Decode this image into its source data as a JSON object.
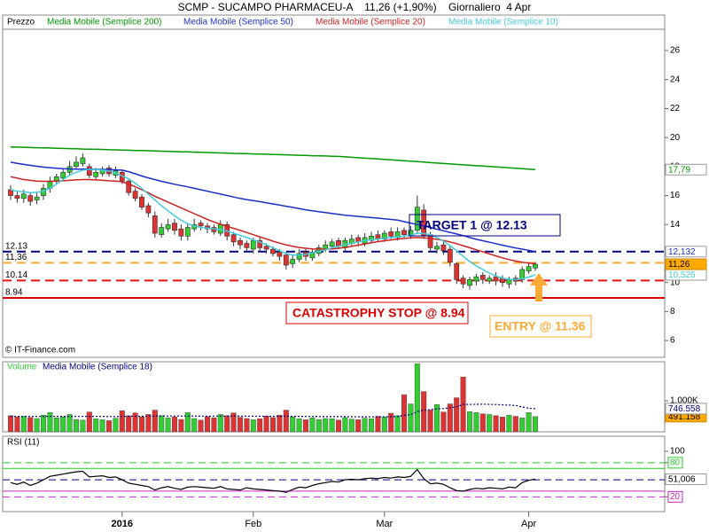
{
  "chart_data": [
    {
      "type": "candlestick",
      "title": "SCMP - SUCAMPO PHARMACEU-A    11,26 (+1,90%)    Giornaliero  4 Apr",
      "categories": [
        null,
        null,
        null,
        null,
        null,
        null,
        null,
        null,
        null,
        null,
        null,
        null,
        null,
        null,
        null,
        null,
        null,
        "2016",
        null,
        null,
        null,
        null,
        null,
        null,
        null,
        null,
        null,
        null,
        null,
        null,
        null,
        null,
        null,
        null,
        null,
        null,
        null,
        "Feb",
        null,
        null,
        null,
        null,
        null,
        null,
        null,
        null,
        null,
        null,
        null,
        null,
        null,
        null,
        null,
        null,
        null,
        null,
        null,
        "Mar",
        null,
        null,
        null,
        null,
        null,
        null,
        null,
        null,
        null,
        null,
        null,
        null,
        null,
        null,
        null,
        null,
        null,
        null,
        null,
        null,
        null,
        "Apr",
        null
      ],
      "ohlc_name": "Prezzo",
      "up_color": "#33cc33",
      "down_color": "#dd3333",
      "open": [
        16.4,
        16.0,
        15.8,
        16.0,
        15.7,
        16.0,
        16.5,
        17.0,
        17.2,
        17.6,
        18.0,
        18.2,
        18.0,
        17.3,
        17.5,
        17.9,
        17.4,
        17.6,
        17.0,
        16.3,
        15.9,
        15.3,
        14.6,
        13.3,
        13.7,
        14.1,
        13.7,
        13.2,
        13.7,
        14.1,
        13.9,
        13.8,
        13.4,
        14.0,
        13.3,
        12.9,
        12.7,
        12.3,
        12.9,
        12.5,
        12.3,
        12.1,
        11.9,
        11.3,
        11.6,
        12.1,
        11.7,
        12.0,
        12.3,
        12.5,
        12.9,
        12.4,
        12.7,
        13.1,
        12.7,
        12.9,
        13.3,
        13.0,
        13.5,
        13.1,
        13.6,
        13.2,
        13.6,
        15.0,
        13.3,
        12.3,
        12.6,
        12.3,
        11.3,
        10.3,
        9.8,
        10.1,
        10.5,
        10.1,
        10.4,
        10.3,
        9.9,
        10.3,
        10.2,
        10.8,
        11.0
      ],
      "high": [
        16.7,
        16.3,
        16.4,
        16.2,
        16.2,
        16.8,
        17.3,
        17.5,
        17.9,
        18.4,
        18.7,
        18.9,
        18.2,
        17.9,
        18.0,
        18.1,
        18.0,
        17.8,
        17.2,
        16.5,
        16.1,
        15.5,
        14.9,
        14.1,
        14.4,
        14.4,
        14.0,
        14.1,
        14.4,
        14.3,
        14.1,
        14.0,
        14.3,
        14.2,
        13.5,
        13.1,
        12.9,
        13.1,
        13.1,
        12.7,
        12.5,
        12.3,
        12.1,
        11.9,
        12.3,
        12.3,
        12.3,
        12.6,
        12.9,
        13.0,
        13.1,
        13.1,
        13.3,
        13.3,
        13.4,
        13.5,
        13.6,
        13.6,
        13.8,
        13.8,
        13.8,
        13.9,
        16.0,
        15.4,
        13.5,
        12.8,
        12.8,
        12.5,
        11.4,
        10.5,
        10.4,
        10.6,
        10.7,
        10.5,
        10.7,
        10.5,
        10.4,
        10.5,
        11.1,
        11.3,
        11.4
      ],
      "low": [
        15.7,
        15.5,
        15.5,
        15.3,
        15.4,
        15.7,
        16.2,
        16.8,
        17.0,
        17.4,
        17.8,
        18.0,
        17.2,
        17.1,
        17.3,
        17.3,
        17.2,
        16.8,
        16.0,
        15.6,
        15.0,
        14.5,
        13.1,
        13.1,
        13.5,
        13.3,
        12.9,
        12.9,
        13.5,
        13.6,
        13.4,
        13.3,
        13.2,
        12.9,
        12.5,
        12.3,
        12.1,
        12.0,
        12.1,
        12.0,
        11.8,
        11.5,
        10.9,
        11.0,
        11.4,
        11.5,
        11.5,
        11.8,
        12.1,
        12.3,
        12.3,
        12.2,
        12.5,
        12.5,
        12.5,
        12.7,
        12.8,
        12.8,
        13.0,
        12.9,
        13.1,
        13.0,
        13.4,
        13.0,
        12.1,
        12.0,
        11.9,
        11.1,
        9.9,
        9.6,
        9.5,
        9.8,
        9.9,
        9.9,
        9.8,
        9.7,
        9.6,
        9.8,
        10.0,
        10.6,
        10.8
      ],
      "close": [
        16.0,
        15.8,
        16.1,
        15.6,
        15.9,
        16.5,
        17.0,
        17.3,
        17.6,
        18.0,
        18.3,
        18.6,
        17.4,
        17.6,
        17.8,
        17.5,
        17.7,
        17.0,
        16.2,
        15.8,
        15.2,
        14.8,
        13.4,
        13.8,
        14.0,
        13.6,
        13.2,
        13.8,
        14.0,
        13.9,
        13.7,
        13.5,
        14.0,
        13.2,
        12.8,
        12.6,
        12.4,
        12.9,
        12.4,
        12.3,
        12.0,
        11.8,
        11.2,
        11.6,
        12.0,
        11.8,
        12.1,
        12.4,
        12.6,
        12.8,
        12.5,
        12.9,
        13.0,
        12.8,
        13.1,
        13.2,
        13.0,
        13.4,
        13.2,
        13.5,
        13.3,
        13.6,
        15.2,
        13.2,
        12.4,
        12.5,
        12.2,
        11.4,
        10.2,
        9.9,
        10.2,
        10.4,
        10.2,
        10.3,
        10.1,
        10.0,
        10.2,
        10.1,
        10.9,
        11.1,
        11.26
      ],
      "last_label": "11,26",
      "series": [
        {
          "name": "Media Mobile (Semplice 200)",
          "type": "line",
          "color": "#009900",
          "last_label": "17,79",
          "values": [
            19.35,
            19.34,
            19.33,
            19.31,
            19.3,
            19.29,
            19.28,
            19.26,
            19.25,
            19.24,
            19.23,
            19.21,
            19.2,
            19.19,
            19.18,
            19.16,
            19.15,
            19.14,
            19.13,
            19.11,
            19.1,
            19.09,
            19.07,
            19.06,
            19.05,
            19.03,
            19.02,
            19.01,
            18.99,
            18.98,
            18.97,
            18.95,
            18.94,
            18.93,
            18.91,
            18.9,
            18.89,
            18.87,
            18.86,
            18.85,
            18.83,
            18.82,
            18.81,
            18.79,
            18.78,
            18.77,
            18.75,
            18.74,
            18.73,
            18.71,
            18.7,
            18.67,
            18.64,
            18.61,
            18.58,
            18.55,
            18.52,
            18.49,
            18.46,
            18.43,
            18.4,
            18.37,
            18.34,
            18.31,
            18.27,
            18.24,
            18.21,
            18.18,
            18.15,
            18.12,
            18.09,
            18.06,
            18.03,
            18.0,
            17.97,
            17.94,
            17.91,
            17.88,
            17.85,
            17.82,
            17.79
          ]
        },
        {
          "name": "Media Mobile (Semplice 50)",
          "type": "line",
          "color": "#1a2fc8",
          "last_label": "12,132",
          "values": [
            18.3,
            18.22,
            18.15,
            18.08,
            18.02,
            17.96,
            17.92,
            17.88,
            17.85,
            17.83,
            17.82,
            17.82,
            17.82,
            17.81,
            17.8,
            17.79,
            17.77,
            17.75,
            17.65,
            17.5,
            17.35,
            17.22,
            17.1,
            16.98,
            16.88,
            16.78,
            16.69,
            16.6,
            16.5,
            16.4,
            16.3,
            16.2,
            16.1,
            16.0,
            15.9,
            15.8,
            15.72,
            15.65,
            15.58,
            15.5,
            15.42,
            15.34,
            15.26,
            15.18,
            15.1,
            15.02,
            14.95,
            14.88,
            14.82,
            14.76,
            14.7,
            14.64,
            14.6,
            14.56,
            14.52,
            14.48,
            14.44,
            14.4,
            14.35,
            14.3,
            14.2,
            14.1,
            14.0,
            13.9,
            13.8,
            13.68,
            13.57,
            13.46,
            13.35,
            13.24,
            13.1,
            12.98,
            12.88,
            12.78,
            12.68,
            12.58,
            12.48,
            12.38,
            12.3,
            12.22,
            12.13
          ]
        },
        {
          "name": "Media Mobile (Semplice 20)",
          "type": "line",
          "color": "#cc2222",
          "values": [
            17.3,
            17.2,
            17.1,
            17.05,
            17.0,
            16.98,
            16.98,
            17.0,
            17.02,
            17.05,
            17.08,
            17.1,
            17.1,
            17.08,
            17.05,
            17.02,
            17.0,
            16.95,
            16.8,
            16.6,
            16.4,
            16.2,
            15.95,
            15.75,
            15.55,
            15.35,
            15.15,
            14.95,
            14.75,
            14.55,
            14.35,
            14.18,
            14.02,
            13.88,
            13.74,
            13.6,
            13.45,
            13.3,
            13.15,
            13.0,
            12.85,
            12.72,
            12.6,
            12.5,
            12.42,
            12.36,
            12.32,
            12.3,
            12.3,
            12.32,
            12.36,
            12.42,
            12.5,
            12.58,
            12.66,
            12.74,
            12.82,
            12.88,
            12.94,
            13.0,
            13.04,
            13.08,
            13.1,
            13.08,
            13.04,
            12.98,
            12.9,
            12.8,
            12.68,
            12.54,
            12.4,
            12.26,
            12.12,
            11.98,
            11.84,
            11.7,
            11.58,
            11.48,
            11.4,
            11.34,
            11.3
          ]
        },
        {
          "name": "Media Mobile (Semplice 10)",
          "type": "line",
          "color": "#44ccdd",
          "last_label": "10,526",
          "values": [
            16.4,
            16.3,
            16.25,
            16.2,
            16.22,
            16.3,
            16.5,
            16.8,
            17.1,
            17.4,
            17.6,
            17.75,
            17.8,
            17.8,
            17.75,
            17.7,
            17.55,
            17.35,
            17.15,
            16.85,
            16.5,
            16.1,
            15.7,
            15.3,
            14.95,
            14.6,
            14.3,
            14.05,
            13.9,
            13.8,
            13.75,
            13.7,
            13.65,
            13.55,
            13.4,
            13.25,
            13.1,
            12.95,
            12.8,
            12.6,
            12.4,
            12.2,
            12.0,
            11.9,
            11.9,
            11.95,
            12.05,
            12.15,
            12.25,
            12.4,
            12.5,
            12.6,
            12.7,
            12.8,
            12.9,
            12.95,
            13.0,
            13.05,
            13.1,
            13.15,
            13.2,
            13.25,
            13.4,
            13.38,
            13.3,
            13.1,
            12.85,
            12.55,
            12.2,
            11.8,
            11.45,
            11.15,
            10.9,
            10.65,
            10.45,
            10.3,
            10.22,
            10.2,
            10.25,
            10.38,
            10.526
          ]
        }
      ],
      "ylim": [
        4.84,
        27.47
      ],
      "yticks": [
        6,
        8,
        10,
        12,
        14,
        16,
        18,
        20,
        22,
        24,
        26
      ],
      "levels": [
        {
          "value": 12.13,
          "label": "12.13",
          "color": "#000080",
          "dash": true
        },
        {
          "value": 11.36,
          "label": "11,36",
          "color": "#ffaa33",
          "dash": true
        },
        {
          "value": 10.14,
          "label": "10.14",
          "color": "#ee1111",
          "dash": true
        },
        {
          "value": 8.94,
          "label": "8.94",
          "color": "#dd0000",
          "dash": false
        }
      ],
      "annotations": [
        "TARGET 1 @ 12.13",
        "CATASTROPHY STOP @ 8.94",
        "ENTRY @ 11.36"
      ],
      "credit": "© IT-Finance.com"
    },
    {
      "type": "bar",
      "series": [
        {
          "name": "Volume",
          "type": "bar",
          "color": "#33cc33",
          "last_label": "491.158",
          "values": [
            520,
            480,
            500,
            460,
            430,
            540,
            620,
            450,
            480,
            560,
            400,
            380,
            640,
            420,
            390,
            360,
            440,
            680,
            520,
            610,
            480,
            560,
            700,
            520,
            450,
            480,
            400,
            620,
            430,
            380,
            490,
            450,
            560,
            520,
            610,
            470,
            430,
            390,
            420,
            510,
            460,
            540,
            700,
            480,
            420,
            390,
            450,
            400,
            430,
            420,
            380,
            460,
            410,
            390,
            440,
            420,
            500,
            480,
            600,
            520,
            1200,
            900,
            2200,
            1300,
            700,
            880,
            640,
            900,
            1100,
            1770,
            650,
            620,
            580,
            560,
            520,
            480,
            540,
            500,
            450,
            620,
            491.158
          ]
        },
        {
          "name": "Media Mobile (Semplice 18)",
          "type": "line",
          "color": "#000080",
          "last_label": "746.558",
          "values": [
            500,
            498,
            497,
            495,
            494,
            496,
            500,
            498,
            497,
            499,
            496,
            494,
            498,
            496,
            494,
            492,
            493,
            498,
            500,
            503,
            502,
            504,
            510,
            511,
            510,
            510,
            508,
            510,
            509,
            506,
            506,
            505,
            506,
            506,
            508,
            507,
            505,
            503,
            502,
            502,
            500,
            500,
            503,
            501,
            499,
            496,
            494,
            492,
            490,
            489,
            488,
            488,
            486,
            484,
            483,
            482,
            483,
            484,
            488,
            490,
            530,
            555,
            650,
            700,
            715,
            740,
            750,
            775,
            810,
            880,
            885,
            888,
            890,
            888,
            880,
            870,
            862,
            850,
            800,
            760,
            746.558
          ]
        }
      ],
      "ylim": [
        0,
        2260
      ],
      "yticks": [
        {
          "value": 1000,
          "label": "1.000K"
        }
      ]
    },
    {
      "type": "line",
      "series": [
        {
          "name": "RSI (11)",
          "type": "line",
          "color": "#000000",
          "last_label": "51,006",
          "values": [
            45,
            42,
            46,
            40,
            44,
            50,
            56,
            58,
            60,
            62,
            64,
            65,
            55,
            56,
            57,
            54,
            55,
            50,
            44,
            42,
            40,
            38,
            32,
            36,
            38,
            35,
            33,
            37,
            38,
            37,
            36,
            35,
            38,
            34,
            33,
            32,
            36,
            34,
            33,
            32,
            31,
            30,
            28,
            33,
            37,
            36,
            40,
            43,
            45,
            47,
            46,
            50,
            51,
            50,
            52,
            53,
            52,
            54,
            53,
            55,
            54,
            56,
            68,
            52,
            43,
            44,
            42,
            36,
            31,
            30,
            33,
            35,
            34,
            36,
            35,
            34,
            37,
            36,
            45,
            49,
            51.006
          ]
        }
      ],
      "ylim": [
        -6,
        125
      ],
      "yticks": [
        100,
        80,
        20
      ],
      "levels": [
        {
          "value": 80,
          "color": "#22cc22",
          "dash": true
        },
        {
          "value": 70,
          "color": "#22cc22",
          "dash": false
        },
        {
          "value": 50,
          "color": "#000080",
          "dash": true
        },
        {
          "value": 30,
          "color": "#cc22cc",
          "dash": false
        },
        {
          "value": 20,
          "color": "#cc22cc",
          "dash": true
        }
      ]
    }
  ]
}
